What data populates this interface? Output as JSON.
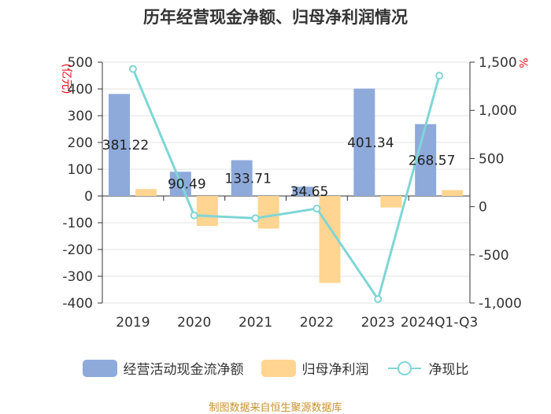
{
  "title": "历年经营现金净额、归母净利润情况",
  "left_unit": "(亿元)",
  "right_unit": "%",
  "source": "制图数据来自恒生聚源数据库",
  "colors": {
    "operating_cash": "#8eaadb",
    "net_profit": "#ffd591",
    "ratio": "#7fd6d6",
    "unit": "#e8101a"
  },
  "legend": [
    {
      "label": "经营活动现金流净额",
      "color": "#8eaadb",
      "kind": "bar"
    },
    {
      "label": "归母净利润",
      "color": "#ffd591",
      "kind": "bar"
    },
    {
      "label": "净现比",
      "color": "#7fd6d6",
      "kind": "line"
    }
  ],
  "chart_data": {
    "type": "bar+line",
    "categories": [
      "2019",
      "2020",
      "2021",
      "2022",
      "2023",
      "2024Q1-Q3"
    ],
    "series": [
      {
        "name": "经营活动现金流净额",
        "axis": "left",
        "type": "bar",
        "values": [
          381.22,
          90.49,
          133.71,
          34.65,
          401.34,
          268.57
        ],
        "labels": [
          "381.22",
          "90.49",
          "133.71",
          "34.65",
          "401.34",
          "268.57"
        ]
      },
      {
        "name": "归母净利润",
        "axis": "left",
        "type": "bar",
        "values": [
          26,
          -112,
          -122,
          -325,
          -43,
          22
        ]
      },
      {
        "name": "净现比",
        "axis": "right",
        "type": "line",
        "values": [
          1430,
          -90,
          -120,
          -20,
          -960,
          1360
        ]
      }
    ],
    "left_axis": {
      "min": -400,
      "max": 500,
      "step": 100,
      "ticks": [
        "500",
        "400",
        "300",
        "200",
        "100",
        "0",
        "-100",
        "-200",
        "-300",
        "-400"
      ]
    },
    "right_axis": {
      "min": -1000,
      "max": 1500,
      "step": 500,
      "ticks": [
        "1,500",
        "1,000",
        "500",
        "0",
        "-500",
        "-1,000"
      ]
    }
  }
}
